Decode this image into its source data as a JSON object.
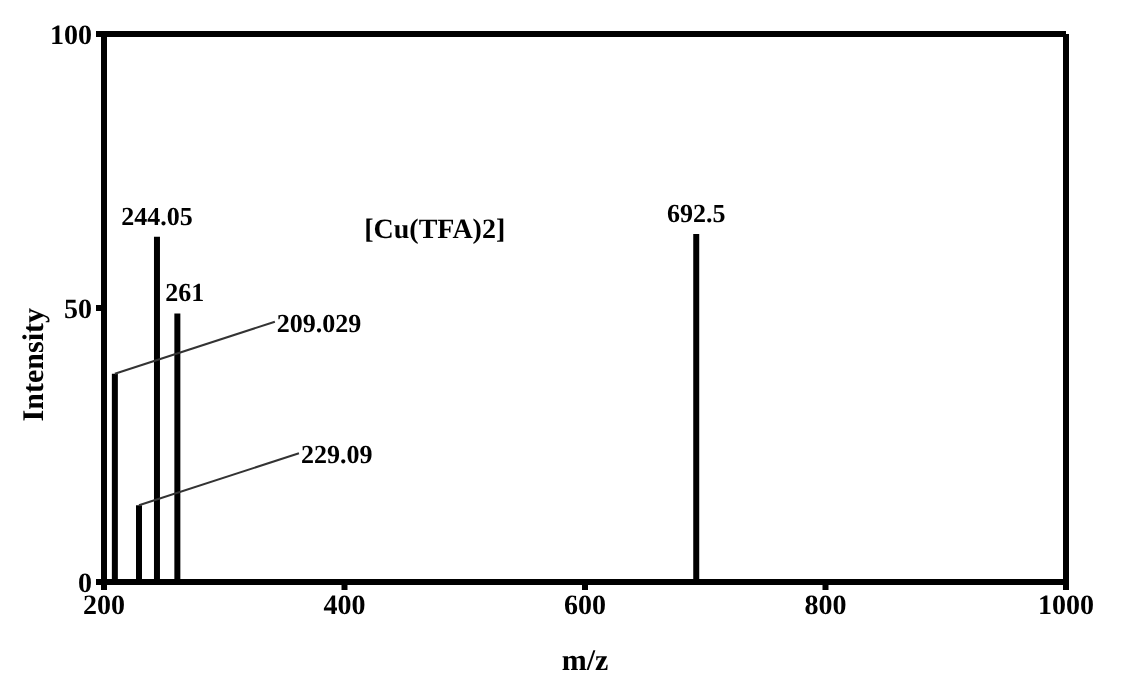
{
  "chart_data": {
    "type": "bar",
    "xlabel": "m/z",
    "ylabel": "Intensity",
    "x": [
      209.029,
      229.09,
      244.05,
      261,
      692.5
    ],
    "values": [
      38,
      14,
      63,
      49,
      63.5
    ],
    "color": "#000000",
    "xlim": [
      200,
      1000
    ],
    "xticks": [
      200,
      400,
      600,
      800,
      1000
    ],
    "ylim": [
      0,
      100
    ],
    "yticks": [
      0,
      50,
      100
    ],
    "grid": false,
    "legend": false,
    "annotations": [
      {
        "text": "209.029",
        "x": 209.029,
        "y": 38
      },
      {
        "text": "229.09",
        "x": 229.09,
        "y": 14
      },
      {
        "text": "244.05",
        "x": 244.05,
        "y": 63
      },
      {
        "text": "261",
        "x": 261,
        "y": 49
      },
      {
        "text": "692.5",
        "x": 692.5,
        "y": 63.5
      },
      "[Cu(TFA)2]"
    ]
  }
}
